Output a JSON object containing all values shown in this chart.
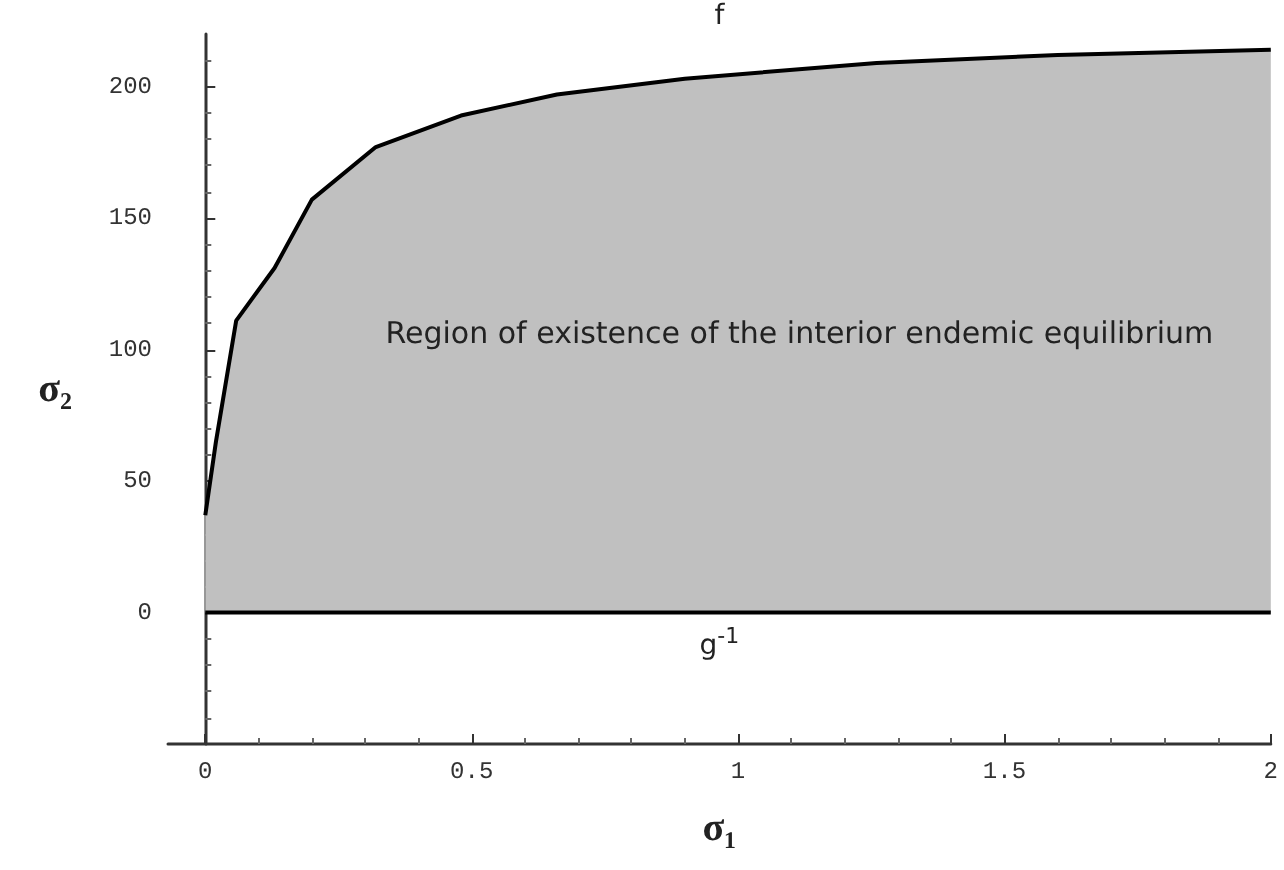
{
  "chart_data": {
    "type": "area",
    "xlabel": "σ₁",
    "ylabel": "σ₂",
    "xlim": [
      -0.07,
      2
    ],
    "ylim": [
      -50,
      220
    ],
    "xticks": [
      0,
      0.5,
      1,
      1.5,
      2
    ],
    "yticks": [
      0,
      50,
      100,
      150,
      200
    ],
    "grid": false,
    "series": [
      {
        "name": "f",
        "color": "#c0c0c0",
        "x": [
          0,
          0.02,
          0.058,
          0.13,
          0.2,
          0.32,
          0.48,
          0.66,
          0.9,
          1.26,
          1.6,
          2
        ],
        "values": [
          37,
          65,
          111,
          131,
          157,
          177,
          189,
          197,
          203,
          209,
          212,
          214
        ]
      },
      {
        "name": "g$^{-1}$",
        "type": "line",
        "color": "#000000",
        "x": [
          0,
          2
        ],
        "values": [
          0,
          0
        ]
      }
    ],
    "annotations": [
      "Region of existence of the interior endemic equilibrium"
    ]
  }
}
